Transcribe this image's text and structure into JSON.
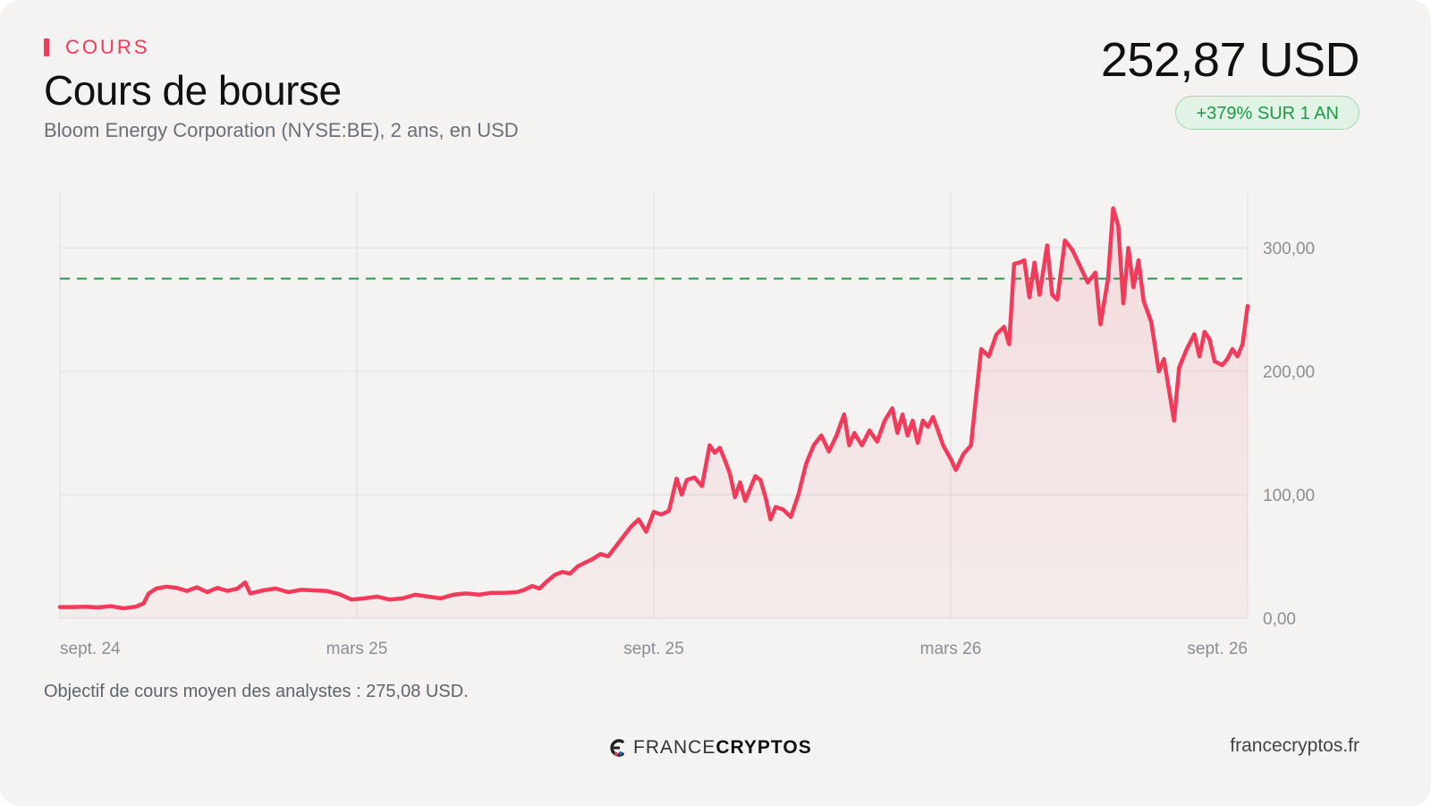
{
  "header": {
    "kicker": "COURS",
    "title": "Cours de bourse",
    "subtitle": "Bloom Energy Corporation (NYSE:BE), 2 ans, en USD",
    "price": "252,87 USD",
    "change_badge": "+379% SUR 1 AN"
  },
  "note": "Objectif de cours moyen des analystes : 275,08 USD.",
  "footer": {
    "brand_light": "FRANCE",
    "brand_bold": "CRYPTOS",
    "site": "francecryptos.fr"
  },
  "colors": {
    "line": "#f23a5a",
    "target_line": "#22994a",
    "badge_text": "#1f9a43",
    "kicker": "#f23a5a"
  },
  "chart_data": {
    "type": "line",
    "title": "Cours de bourse",
    "x_axis_ticks": [
      "sept. 24",
      "mars 25",
      "sept. 25",
      "mars 26",
      "sept. 26"
    ],
    "y_axis_ticks": [
      "0,00",
      "100,00",
      "200,00",
      "300,00"
    ],
    "ylim": [
      0,
      345
    ],
    "grid": true,
    "y_axis_side": "right",
    "target_price": 275.08,
    "x_range": [
      "2024-09",
      "2026-09"
    ],
    "series": [
      {
        "values": [
          [
            0.0,
            9.0
          ],
          [
            0.5,
            9.0
          ],
          [
            1.0,
            9.3
          ],
          [
            1.5,
            8.7
          ],
          [
            2.0,
            9.7
          ],
          [
            2.5,
            8.0
          ],
          [
            3.0,
            9.3
          ],
          [
            3.3,
            12.0
          ],
          [
            3.5,
            20.0
          ],
          [
            3.8,
            24.0
          ],
          [
            4.2,
            25.5
          ],
          [
            4.6,
            24.5
          ],
          [
            5.0,
            22.0
          ],
          [
            5.4,
            25.0
          ],
          [
            5.8,
            21.0
          ],
          [
            6.2,
            24.5
          ],
          [
            6.6,
            22.0
          ],
          [
            7.0,
            24.0
          ],
          [
            7.3,
            29.0
          ],
          [
            7.5,
            20.0
          ],
          [
            8.0,
            22.5
          ],
          [
            8.5,
            24.0
          ],
          [
            9.0,
            21.0
          ],
          [
            9.5,
            23.0
          ],
          [
            10.0,
            22.5
          ],
          [
            10.5,
            22.0
          ],
          [
            11.0,
            19.5
          ],
          [
            11.5,
            15.0
          ],
          [
            12.0,
            16.0
          ],
          [
            12.5,
            17.5
          ],
          [
            13.0,
            15.0
          ],
          [
            13.5,
            16.0
          ],
          [
            14.0,
            19.0
          ],
          [
            14.5,
            17.5
          ],
          [
            15.0,
            16.0
          ],
          [
            15.5,
            19.0
          ],
          [
            16.0,
            20.0
          ],
          [
            16.5,
            19.0
          ],
          [
            17.0,
            20.5
          ],
          [
            17.5,
            20.5
          ],
          [
            18.0,
            21.0
          ],
          [
            18.3,
            23.0
          ],
          [
            18.6,
            26.0
          ],
          [
            18.9,
            24.0
          ],
          [
            19.2,
            30.0
          ],
          [
            19.5,
            35.0
          ],
          [
            19.8,
            37.5
          ],
          [
            20.1,
            36.0
          ],
          [
            20.4,
            42.0
          ],
          [
            20.7,
            45.0
          ],
          [
            21.0,
            48.0
          ],
          [
            21.3,
            52.0
          ],
          [
            21.6,
            50.0
          ],
          [
            21.9,
            58.0
          ],
          [
            22.2,
            66.0
          ],
          [
            22.5,
            74.0
          ],
          [
            22.8,
            80.0
          ],
          [
            23.1,
            70.0
          ],
          [
            23.4,
            86.0
          ],
          [
            23.7,
            84.0
          ],
          [
            24.0,
            87.0
          ],
          [
            24.3,
            113.0
          ],
          [
            24.5,
            100.0
          ],
          [
            24.7,
            112.0
          ],
          [
            25.0,
            114.0
          ],
          [
            25.3,
            107.0
          ],
          [
            25.6,
            140.0
          ],
          [
            25.8,
            134.0
          ],
          [
            26.0,
            138.0
          ],
          [
            26.2,
            128.0
          ],
          [
            26.4,
            117.0
          ],
          [
            26.6,
            98.0
          ],
          [
            26.8,
            110.0
          ],
          [
            27.0,
            95.0
          ],
          [
            27.2,
            105.0
          ],
          [
            27.4,
            115.0
          ],
          [
            27.6,
            112.0
          ],
          [
            27.8,
            98.0
          ],
          [
            28.0,
            80.0
          ],
          [
            28.2,
            90.0
          ],
          [
            28.5,
            88.0
          ],
          [
            28.8,
            82.0
          ],
          [
            29.1,
            100.0
          ],
          [
            29.4,
            125.0
          ],
          [
            29.7,
            140.0
          ],
          [
            30.0,
            148.0
          ],
          [
            30.3,
            135.0
          ],
          [
            30.6,
            148.0
          ],
          [
            30.9,
            165.0
          ],
          [
            31.1,
            140.0
          ],
          [
            31.3,
            150.0
          ],
          [
            31.6,
            140.0
          ],
          [
            31.9,
            152.0
          ],
          [
            32.2,
            143.0
          ],
          [
            32.5,
            160.0
          ],
          [
            32.8,
            170.0
          ],
          [
            33.0,
            150.0
          ],
          [
            33.2,
            165.0
          ],
          [
            33.4,
            148.0
          ],
          [
            33.6,
            160.0
          ],
          [
            33.8,
            142.0
          ],
          [
            34.0,
            160.0
          ],
          [
            34.2,
            155.0
          ],
          [
            34.4,
            163.0
          ],
          [
            34.6,
            152.0
          ],
          [
            34.8,
            140.0
          ],
          [
            35.1,
            129.0
          ],
          [
            35.3,
            120.0
          ],
          [
            35.6,
            133.0
          ],
          [
            35.9,
            140.0
          ],
          [
            36.1,
            180.0
          ],
          [
            36.3,
            218.0
          ],
          [
            36.6,
            212.0
          ],
          [
            36.9,
            230.0
          ],
          [
            37.2,
            236.0
          ],
          [
            37.4,
            222.0
          ],
          [
            37.6,
            287.0
          ],
          [
            37.8,
            288.0
          ],
          [
            38.0,
            290.0
          ],
          [
            38.2,
            260.0
          ],
          [
            38.4,
            288.0
          ],
          [
            38.6,
            262.0
          ],
          [
            38.9,
            302.0
          ],
          [
            39.1,
            262.0
          ],
          [
            39.3,
            258.0
          ],
          [
            39.6,
            306.0
          ],
          [
            39.9,
            298.0
          ],
          [
            40.2,
            285.0
          ],
          [
            40.5,
            272.0
          ],
          [
            40.8,
            280.0
          ],
          [
            41.0,
            238.0
          ],
          [
            41.3,
            275.0
          ],
          [
            41.5,
            332.0
          ],
          [
            41.7,
            318.0
          ],
          [
            41.9,
            255.0
          ],
          [
            42.1,
            300.0
          ],
          [
            42.3,
            268.0
          ],
          [
            42.5,
            290.0
          ],
          [
            42.7,
            257.0
          ],
          [
            43.0,
            240.0
          ],
          [
            43.3,
            200.0
          ],
          [
            43.5,
            210.0
          ],
          [
            43.7,
            185.0
          ],
          [
            43.9,
            160.0
          ],
          [
            44.1,
            203.0
          ],
          [
            44.4,
            218.0
          ],
          [
            44.7,
            230.0
          ],
          [
            44.9,
            212.0
          ],
          [
            45.1,
            232.0
          ],
          [
            45.3,
            226.0
          ],
          [
            45.5,
            208.0
          ],
          [
            45.8,
            205.0
          ],
          [
            46.0,
            210.0
          ],
          [
            46.2,
            218.0
          ],
          [
            46.4,
            212.0
          ],
          [
            46.6,
            222.0
          ],
          [
            46.8,
            252.87
          ]
        ]
      }
    ]
  }
}
